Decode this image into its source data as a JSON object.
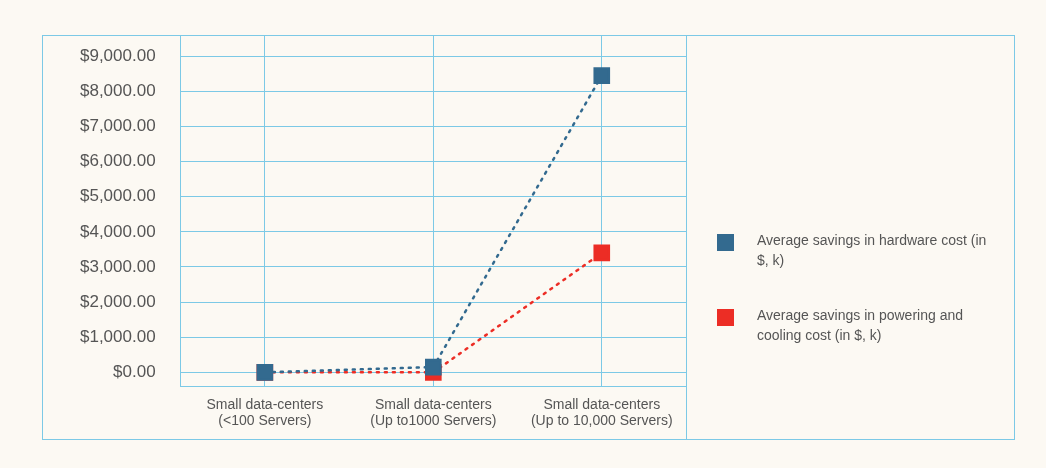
{
  "chart_data": {
    "type": "line",
    "categories": [
      "Small data-centers\n(<100 Servers)",
      "Small data-centers\n(Up to1000 Servers)",
      "Small data-centers\n(Up to 10,000 Servers)"
    ],
    "series": [
      {
        "name": "Average savings in hardware cost (in $, k)",
        "color": "#336a8f",
        "values": [
          0,
          150,
          8450
        ]
      },
      {
        "name": "Average savings in powering and cooling cost (in $, k)",
        "color": "#ec2d25",
        "values": [
          0,
          0,
          3400
        ]
      }
    ],
    "ylim": [
      -400,
      9600
    ],
    "yticks": [
      {
        "value": 0,
        "label": "$0.00"
      },
      {
        "value": 1000,
        "label": "$1,000.00"
      },
      {
        "value": 2000,
        "label": "$2,000.00"
      },
      {
        "value": 3000,
        "label": "$3,000.00"
      },
      {
        "value": 4000,
        "label": "$4,000.00"
      },
      {
        "value": 5000,
        "label": "$5,000.00"
      },
      {
        "value": 6000,
        "label": "$6,000.00"
      },
      {
        "value": 7000,
        "label": "$7,000.00"
      },
      {
        "value": 8000,
        "label": "$8,000.00"
      },
      {
        "value": 9000,
        "label": "$9,000.00"
      }
    ],
    "grid": true,
    "legend": "right",
    "marker": "square",
    "line_style": "dotted"
  }
}
